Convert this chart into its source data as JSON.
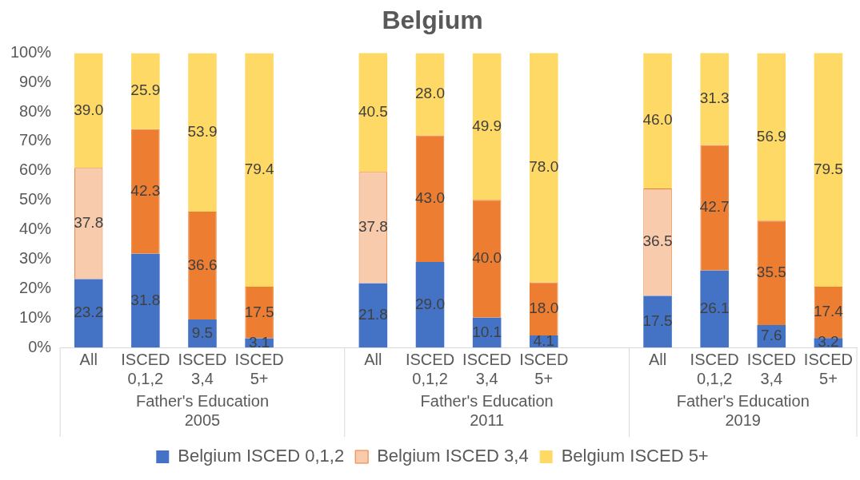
{
  "chart_data": {
    "type": "bar",
    "title": "Belgium",
    "stacked": true,
    "legend": "bottom",
    "grid": false,
    "categories": [
      "All",
      "ISCED 0,1,2",
      "ISCED 3,4",
      "ISCED 5+",
      null,
      "All",
      "ISCED 0,1,2",
      "ISCED 3,4",
      "ISCED 5+",
      null,
      "All",
      "ISCED 0,1,2",
      "ISCED 3,4",
      "ISCED 5+"
    ],
    "annotations": [
      "Father's Education 2005",
      "Father's Education 2011",
      "Father's Education 2019"
    ],
    "ylim": [
      0,
      100
    ],
    "yticks": [
      {
        "value": 0,
        "label": "0%"
      },
      {
        "value": 10,
        "label": "10%"
      },
      {
        "value": 20,
        "label": "20%"
      },
      {
        "value": 30,
        "label": "30%"
      },
      {
        "value": 40,
        "label": "40%"
      },
      {
        "value": 50,
        "label": "50%"
      },
      {
        "value": 60,
        "label": "60%"
      },
      {
        "value": 70,
        "label": "70%"
      },
      {
        "value": 80,
        "label": "80%"
      },
      {
        "value": 90,
        "label": "90%"
      },
      {
        "value": 100,
        "label": "100%"
      }
    ],
    "series": [
      {
        "name": "Belgium ISCED 0,1,2",
        "color": "#4472c4",
        "values": [
          23.2,
          31.8,
          9.5,
          3.1,
          null,
          21.8,
          29.0,
          10.1,
          4.1,
          null,
          17.5,
          26.1,
          7.6,
          3.2
        ],
        "value_labels": [
          "23.2",
          "31.8",
          "9.5",
          "3.1",
          null,
          "21.8",
          "29.0",
          "10.1",
          "4.1",
          null,
          "17.5",
          "26.1",
          "7.6",
          "3.2"
        ]
      },
      {
        "name": "Belgium ISCED 3,4",
        "color": "#ed7d31",
        "colors": [
          "#f8cbad",
          "#ed7d31",
          "#ed7d31",
          "#ed7d31",
          "#ed7d31",
          "#f8cbad",
          "#ed7d31",
          "#ed7d31",
          "#ed7d31",
          "#ed7d31",
          "#f8cbad",
          "#ed7d31",
          "#ed7d31",
          "#ed7d31"
        ],
        "values": [
          37.8,
          42.3,
          36.6,
          17.5,
          null,
          37.8,
          43.0,
          40.0,
          18.0,
          null,
          36.5,
          42.7,
          35.5,
          17.4
        ],
        "value_labels": [
          "37.8",
          "42.3",
          "36.6",
          "17.5",
          null,
          "37.8",
          "43.0",
          "40.0",
          "18.0",
          null,
          "36.5",
          "42.7",
          "35.5",
          "17.4"
        ]
      },
      {
        "name": "Belgium ISCED 5+",
        "color": "#ffd966",
        "values": [
          39.0,
          25.9,
          53.9,
          79.4,
          null,
          40.5,
          28.0,
          49.9,
          78.0,
          null,
          46.0,
          31.3,
          56.9,
          79.5
        ],
        "value_labels": [
          "39.0",
          "25.9",
          "53.9",
          "79.4",
          null,
          "40.5",
          "28.0",
          "49.9",
          "78.0",
          null,
          "46.0",
          "31.3",
          "56.9",
          "79.5"
        ]
      }
    ]
  }
}
